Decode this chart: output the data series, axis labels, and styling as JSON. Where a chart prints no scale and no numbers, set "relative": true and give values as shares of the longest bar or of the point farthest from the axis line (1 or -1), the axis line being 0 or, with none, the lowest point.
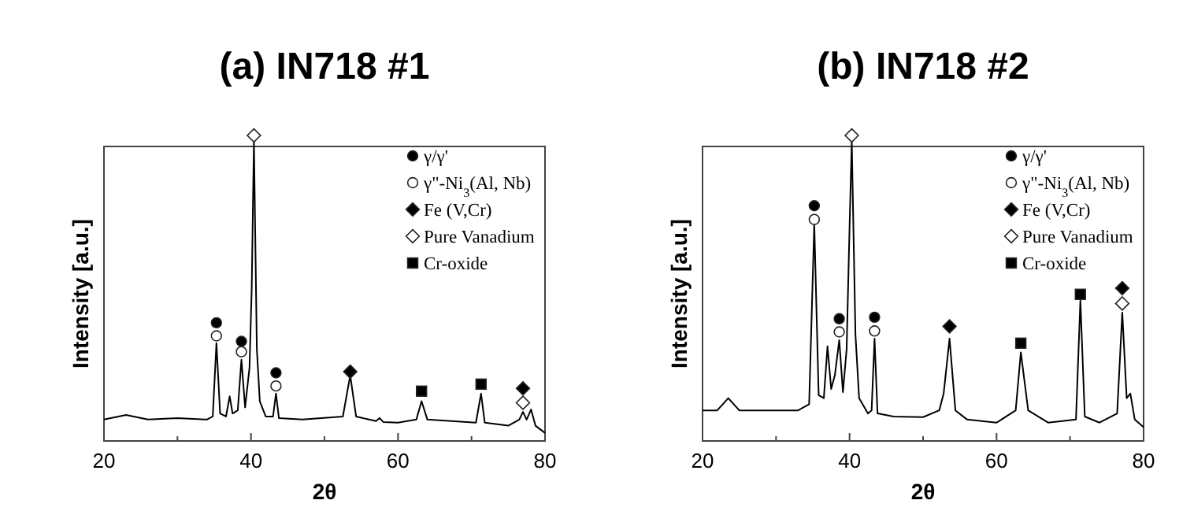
{
  "chart_data": [
    {
      "type": "line",
      "title": "(a) IN718 #1",
      "xlabel": "2θ",
      "ylabel": "Intensity [a.u.]",
      "relative": true,
      "xlim": [
        20,
        80
      ],
      "xticks": [
        20,
        {
          "value": 30,
          "label": null
        },
        40,
        {
          "value": 50,
          "label": null
        },
        60,
        {
          "value": 70,
          "label": null
        },
        80
      ],
      "legend": "top right",
      "tick_labels": "x",
      "series": [
        {
          "color": "#000000",
          "x": [
            20,
            23,
            26,
            30,
            34,
            34.8,
            35.3,
            35.8,
            36.6,
            37.1,
            37.5,
            38.2,
            38.7,
            39.2,
            39.8,
            40.1,
            40.4,
            40.8,
            41.2,
            42,
            43,
            43.4,
            43.8,
            47,
            52.5,
            53.5,
            54.3,
            57,
            57.5,
            58,
            60,
            62.5,
            63.2,
            64,
            70.6,
            71.3,
            71.8,
            75,
            76.5,
            77,
            77.5,
            78.1,
            78.7,
            80
          ],
          "values": [
            0.07,
            0.085,
            0.07,
            0.075,
            0.07,
            0.08,
            0.32,
            0.09,
            0.08,
            0.146,
            0.09,
            0.1,
            0.266,
            0.11,
            0.24,
            0.5,
            0.98,
            0.3,
            0.13,
            0.08,
            0.08,
            0.155,
            0.075,
            0.07,
            0.08,
            0.215,
            0.08,
            0.065,
            0.075,
            0.062,
            0.06,
            0.07,
            0.13,
            0.07,
            0.06,
            0.155,
            0.06,
            0.05,
            0.07,
            0.095,
            0.07,
            0.103,
            0.05,
            0.026
          ]
        },
        {
          "type": "scatter",
          "name": "γ/γ'",
          "color": "#000000",
          "marker": "circle",
          "x": [
            35.3,
            38.7,
            43.4
          ],
          "values": [
            0.387,
            0.326,
            0.223
          ]
        },
        {
          "type": "scatter",
          "name": "γ\"-Ni$_{3}$(Al, Nb)",
          "color": "#ffffff",
          "marker": "circle",
          "x": [
            35.3,
            38.7,
            43.4
          ],
          "values": [
            0.344,
            0.292,
            0.18
          ]
        },
        {
          "type": "scatter",
          "name": "Fe (V,Cr)",
          "color": "#000000",
          "marker": "diamond",
          "x": [
            53.5,
            77
          ],
          "values": [
            0.227,
            0.172
          ]
        },
        {
          "type": "scatter",
          "name": "Pure Vanadium",
          "color": "#ffffff",
          "marker": "diamond",
          "x": [
            40.4,
            77
          ],
          "values": [
            1,
            0.125
          ]
        },
        {
          "type": "scatter",
          "name": "Cr-oxide",
          "color": "#000000",
          "marker": "square",
          "x": [
            63.2,
            71.3
          ],
          "values": [
            0.163,
            0.186
          ]
        }
      ]
    },
    {
      "type": "line",
      "title": "(b) IN718 #2",
      "xlabel": "2θ",
      "ylabel": "Intensity [a.u.]",
      "relative": true,
      "xlim": [
        20,
        80
      ],
      "xticks": [
        20,
        {
          "value": 30,
          "label": null
        },
        40,
        {
          "value": 50,
          "label": null
        },
        60,
        {
          "value": 70,
          "label": null
        },
        80
      ],
      "legend": "top right",
      "tick_labels": "x",
      "series": [
        {
          "color": "#000000",
          "x": [
            20,
            22,
            23.5,
            25,
            30,
            33,
            34.5,
            35.2,
            35.8,
            36.5,
            37,
            37.5,
            38,
            38.6,
            39.1,
            39.6,
            40,
            40.3,
            40.8,
            41.3,
            42.5,
            43,
            43.4,
            43.8,
            46,
            50,
            52.2,
            52.8,
            53.6,
            54.4,
            56,
            60,
            62.6,
            63.3,
            64.3,
            67,
            70.8,
            71.4,
            72,
            74,
            76.4,
            77.1,
            77.7,
            78.2,
            78.8,
            80
          ],
          "values": [
            0.1,
            0.1,
            0.14,
            0.1,
            0.1,
            0.1,
            0.12,
            0.71,
            0.15,
            0.14,
            0.31,
            0.17,
            0.215,
            0.33,
            0.16,
            0.3,
            0.7,
            0.98,
            0.35,
            0.14,
            0.09,
            0.1,
            0.335,
            0.09,
            0.08,
            0.078,
            0.1,
            0.155,
            0.335,
            0.1,
            0.07,
            0.06,
            0.1,
            0.29,
            0.1,
            0.06,
            0.07,
            0.46,
            0.08,
            0.06,
            0.09,
            0.42,
            0.14,
            0.155,
            0.07,
            0.045
          ]
        },
        {
          "type": "scatter",
          "name": "γ/γ'",
          "color": "#000000",
          "marker": "circle",
          "x": [
            35.2,
            38.6,
            43.4
          ],
          "values": [
            0.77,
            0.4,
            0.405
          ]
        },
        {
          "type": "scatter",
          "name": "γ\"-Ni$_{3}$(Al, Nb)",
          "color": "#ffffff",
          "marker": "circle",
          "x": [
            35.2,
            38.6,
            43.4
          ],
          "values": [
            0.725,
            0.357,
            0.36
          ]
        },
        {
          "type": "scatter",
          "name": "Fe (V,Cr)",
          "color": "#000000",
          "marker": "diamond",
          "x": [
            53.6,
            77.1
          ],
          "values": [
            0.375,
            0.5
          ]
        },
        {
          "type": "scatter",
          "name": "Pure Vanadium",
          "color": "#ffffff",
          "marker": "diamond",
          "x": [
            40.3,
            77.1
          ],
          "values": [
            1,
            0.45
          ]
        },
        {
          "type": "scatter",
          "name": "Cr-oxide",
          "color": "#000000",
          "marker": "square",
          "x": [
            63.3,
            71.4
          ],
          "values": [
            0.32,
            0.48
          ]
        }
      ]
    }
  ]
}
